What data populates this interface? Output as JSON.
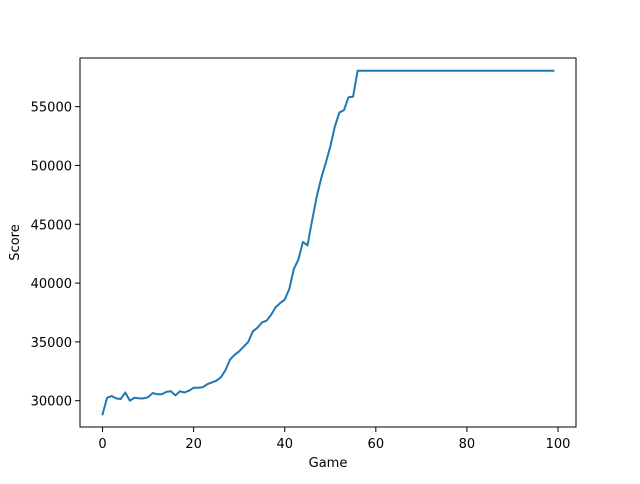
{
  "chart_data": {
    "type": "line",
    "xlabel": "Game",
    "ylabel": "Score",
    "xlim": [
      -4.95,
      103.95
    ],
    "ylim": [
      27765,
      59135
    ],
    "x_ticks": [
      0,
      20,
      40,
      60,
      80,
      100
    ],
    "y_ticks": [
      30000,
      35000,
      40000,
      45000,
      50000,
      55000
    ],
    "x_tick_labels": [
      "0",
      "20",
      "40",
      "60",
      "80",
      "100"
    ],
    "y_tick_labels": [
      "30000",
      "35000",
      "40000",
      "45000",
      "50000",
      "55000"
    ],
    "grid": false,
    "line_color": "#1f77b4",
    "series": [
      {
        "x": [
          0,
          1,
          2,
          3,
          4,
          5,
          6,
          7,
          8,
          9,
          10,
          11,
          12,
          13,
          14,
          15,
          16,
          17,
          18,
          19,
          20,
          21,
          22,
          23,
          24,
          25,
          26,
          27,
          28,
          29,
          30,
          31,
          32,
          33,
          34,
          35,
          36,
          37,
          38,
          39,
          40,
          41,
          42,
          43,
          44,
          45,
          46,
          47,
          48,
          49,
          50,
          51,
          52,
          53,
          54,
          55,
          56,
          57,
          58,
          59,
          60,
          61,
          62,
          63,
          64,
          65,
          66,
          67,
          68,
          69,
          70,
          71,
          72,
          73,
          74,
          75,
          76,
          77,
          78,
          79,
          80,
          81,
          82,
          83,
          84,
          85,
          86,
          87,
          88,
          89,
          90,
          91,
          92,
          93,
          94,
          95,
          96,
          97,
          98,
          99
        ],
        "y": [
          28850,
          30250,
          30400,
          30200,
          30150,
          30700,
          30000,
          30250,
          30200,
          30200,
          30300,
          30650,
          30550,
          30550,
          30750,
          30800,
          30450,
          30800,
          30700,
          30850,
          31100,
          31100,
          31150,
          31400,
          31550,
          31700,
          32000,
          32600,
          33500,
          33900,
          34200,
          34600,
          35000,
          35900,
          36200,
          36650,
          36800,
          37300,
          37950,
          38300,
          38600,
          39500,
          41200,
          42000,
          43500,
          43200,
          45300,
          47300,
          48900,
          50200,
          51600,
          53300,
          54500,
          54700,
          55800,
          55850,
          58050,
          58050,
          58050,
          58050,
          58050,
          58050,
          58050,
          58050,
          58050,
          58050,
          58050,
          58050,
          58050,
          58050,
          58050,
          58050,
          58050,
          58050,
          58050,
          58050,
          58050,
          58050,
          58050,
          58050,
          58050,
          58050,
          58050,
          58050,
          58050,
          58050,
          58050,
          58050,
          58050,
          58050,
          58050,
          58050,
          58050,
          58050,
          58050,
          58050,
          58050,
          58050,
          58050,
          58050
        ]
      }
    ]
  }
}
